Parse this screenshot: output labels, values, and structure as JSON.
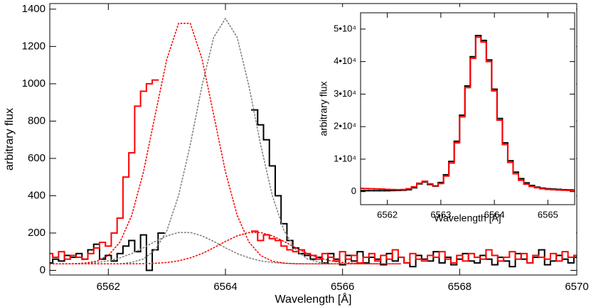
{
  "chart_data": [
    {
      "type": "line",
      "xlabel": "Wavelength [Å]",
      "ylabel": "arbitrary flux",
      "xlim": [
        6561,
        6570
      ],
      "ylim": [
        -25,
        1430
      ],
      "xticks": [
        6562,
        6564,
        6566,
        6568,
        6570
      ],
      "yticks": [
        0,
        200,
        400,
        600,
        800,
        1000,
        1200,
        1400
      ],
      "series": [
        {
          "color": "#000000",
          "drawstyle": "steps",
          "linestyle": "solid",
          "x": [
            6561.0,
            6561.1,
            6561.2,
            6561.3,
            6561.4,
            6561.5,
            6561.6,
            6561.7,
            6561.8,
            6561.9,
            6562.0,
            6562.1,
            6562.2,
            6562.3,
            6562.4,
            6562.5,
            6562.6,
            6562.7,
            6562.8,
            6562.9,
            6563.0,
            6563.1,
            6563.2,
            6563.3,
            6563.4,
            6563.5,
            6563.6,
            6563.7,
            6563.8,
            6563.9,
            6564.0,
            6564.1,
            6564.2,
            6564.3,
            6564.4,
            6564.5,
            6564.6,
            6564.7,
            6564.8,
            6564.9,
            6565.0,
            6565.1,
            6565.2,
            6565.3,
            6565.4,
            6565.5,
            6565.6,
            6565.7,
            6565.8,
            6565.9,
            6566.0,
            6566.1,
            6566.2,
            6566.3,
            6566.4,
            6566.5,
            6566.6,
            6566.7,
            6566.8,
            6566.9,
            6567.0,
            6567.1,
            6567.2,
            6567.3,
            6567.4,
            6567.5,
            6567.6,
            6567.7,
            6567.8,
            6567.9,
            6568.0,
            6568.1,
            6568.2,
            6568.3,
            6568.4,
            6568.5,
            6568.6,
            6568.7,
            6568.8,
            6568.9,
            6569.0,
            6569.1,
            6569.2,
            6569.3,
            6569.4,
            6569.5,
            6569.6,
            6569.7,
            6569.8,
            6569.9,
            6570.0
          ],
          "values": [
            40,
            60,
            50,
            80,
            70,
            90,
            60,
            110,
            140,
            60,
            80,
            50,
            90,
            130,
            160,
            100,
            190,
            0,
            110,
            200,
            null,
            null,
            null,
            null,
            null,
            null,
            null,
            null,
            null,
            null,
            null,
            null,
            null,
            null,
            null,
            860,
            780,
            700,
            560,
            400,
            250,
            160,
            120,
            90,
            80,
            60,
            70,
            40,
            90,
            60,
            30,
            80,
            50,
            100,
            40,
            70,
            60,
            30,
            90,
            50,
            70,
            40,
            20,
            80,
            60,
            50,
            100,
            40,
            70,
            30,
            60,
            90,
            50,
            40,
            80,
            60,
            30,
            70,
            50,
            20,
            90,
            60,
            40,
            70,
            110,
            30,
            50,
            80,
            60,
            40,
            70
          ]
        },
        {
          "color": "#ff0000",
          "drawstyle": "steps",
          "linestyle": "solid",
          "x": [
            6561.0,
            6561.1,
            6561.2,
            6561.3,
            6561.4,
            6561.5,
            6561.6,
            6561.7,
            6561.8,
            6561.9,
            6562.0,
            6562.1,
            6562.2,
            6562.3,
            6562.4,
            6562.5,
            6562.6,
            6562.7,
            6562.8,
            6562.9,
            6563.0,
            6563.1,
            6563.2,
            6563.3,
            6563.4,
            6563.5,
            6563.6,
            6563.7,
            6563.8,
            6563.9,
            6564.0,
            6564.1,
            6564.2,
            6564.3,
            6564.4,
            6564.5,
            6564.6,
            6564.7,
            6564.8,
            6564.9,
            6565.0,
            6565.1,
            6565.2,
            6565.3,
            6565.4,
            6565.5,
            6565.6,
            6565.7,
            6565.8,
            6565.9,
            6566.0,
            6566.1,
            6566.2,
            6566.3,
            6566.4,
            6566.5,
            6566.6,
            6566.7,
            6566.8,
            6566.9,
            6567.0,
            6567.1,
            6567.2,
            6567.3,
            6567.4,
            6567.5,
            6567.6,
            6567.7,
            6567.8,
            6567.9,
            6568.0,
            6568.1,
            6568.2,
            6568.3,
            6568.4,
            6568.5,
            6568.6,
            6568.7,
            6568.8,
            6568.9,
            6569.0,
            6569.1,
            6569.2,
            6569.3,
            6569.4,
            6569.5,
            6569.6,
            6569.7,
            6569.8,
            6569.9,
            6570.0
          ],
          "values": [
            90,
            70,
            100,
            60,
            80,
            70,
            60,
            90,
            120,
            150,
            130,
            200,
            280,
            500,
            630,
            880,
            960,
            1000,
            1020,
            null,
            null,
            null,
            null,
            null,
            null,
            null,
            null,
            null,
            null,
            null,
            null,
            null,
            null,
            null,
            null,
            210,
            160,
            190,
            170,
            160,
            130,
            110,
            100,
            110,
            90,
            80,
            60,
            90,
            70,
            50,
            100,
            60,
            80,
            40,
            70,
            90,
            50,
            80,
            60,
            110,
            70,
            40,
            90,
            60,
            50,
            80,
            70,
            100,
            60,
            40,
            80,
            50,
            90,
            70,
            60,
            110,
            80,
            50,
            70,
            100,
            60,
            90,
            40,
            80,
            70,
            60,
            90,
            50,
            100,
            70,
            80
          ]
        },
        {
          "color": "#808080",
          "drawstyle": "default",
          "linestyle": "dotted",
          "x": [
            6561.0,
            6561.2,
            6561.4,
            6561.6,
            6561.8,
            6562.0,
            6562.2,
            6562.4,
            6562.6,
            6562.8,
            6563.0,
            6563.2,
            6563.4,
            6563.6,
            6563.8,
            6564.0,
            6564.2,
            6564.4,
            6564.6,
            6564.8,
            6565.0,
            6565.2,
            6565.4,
            6565.6,
            6565.8,
            6566.0,
            6566.2,
            6566.4,
            6566.6,
            6566.8,
            6567.0
          ],
          "values": [
            35,
            35,
            35,
            35,
            35,
            35,
            35,
            43,
            61,
            109,
            213,
            401,
            675,
            990,
            1249,
            1350,
            1249,
            990,
            675,
            401,
            213,
            109,
            61,
            43,
            35,
            35,
            35,
            35,
            35,
            35,
            35
          ]
        },
        {
          "color": "#808080",
          "drawstyle": "default",
          "linestyle": "dotted",
          "x": [
            6561.0,
            6561.2,
            6561.4,
            6561.6,
            6561.8,
            6562.0,
            6562.2,
            6562.4,
            6562.6,
            6562.8,
            6563.0,
            6563.2,
            6563.4,
            6563.6,
            6563.8,
            6564.0,
            6564.2,
            6564.4,
            6564.6,
            6564.8,
            6565.0,
            6565.2,
            6565.4,
            6565.6,
            6565.8,
            6566.0,
            6566.2,
            6566.4,
            6566.6,
            6566.8,
            6567.0
          ],
          "values": [
            35,
            35,
            36,
            38,
            42,
            51,
            67,
            90,
            121,
            155,
            185,
            203,
            203,
            185,
            155,
            121,
            90,
            67,
            51,
            42,
            38,
            36,
            35,
            35,
            35,
            35,
            35,
            35,
            35,
            35,
            35
          ]
        },
        {
          "color": "#ff0000",
          "drawstyle": "default",
          "linestyle": "dotted",
          "x": [
            6561.0,
            6561.2,
            6561.4,
            6561.6,
            6561.8,
            6562.0,
            6562.2,
            6562.4,
            6562.6,
            6562.8,
            6563.0,
            6563.2,
            6563.4,
            6563.6,
            6563.8,
            6564.0,
            6564.2,
            6564.4,
            6564.6,
            6564.8,
            6565.0,
            6565.2,
            6565.4,
            6565.6,
            6565.8,
            6566.0,
            6566.2,
            6566.4,
            6566.6,
            6566.8,
            6567.0
          ],
          "values": [
            35,
            35,
            35,
            39,
            49,
            80,
            152,
            295,
            528,
            833,
            1133,
            1324,
            1324,
            1133,
            833,
            528,
            295,
            152,
            80,
            49,
            39,
            35,
            35,
            35,
            35,
            35,
            35,
            35,
            35,
            35,
            35
          ]
        },
        {
          "color": "#ff0000",
          "drawstyle": "default",
          "linestyle": "dotted",
          "x": [
            6561.0,
            6561.2,
            6561.4,
            6561.6,
            6561.8,
            6562.0,
            6562.2,
            6562.4,
            6562.6,
            6562.8,
            6563.0,
            6563.2,
            6563.4,
            6563.6,
            6563.8,
            6564.0,
            6564.2,
            6564.4,
            6564.6,
            6564.8,
            6565.0,
            6565.2,
            6565.4,
            6565.6,
            6565.8,
            6566.0,
            6566.2,
            6566.4,
            6566.6,
            6566.8,
            6567.0
          ],
          "values": [
            35,
            35,
            35,
            35,
            35,
            35,
            35,
            35,
            36,
            38,
            42,
            51,
            67,
            90,
            121,
            155,
            185,
            203,
            203,
            185,
            155,
            121,
            90,
            67,
            51,
            42,
            38,
            36,
            35,
            35,
            35
          ]
        }
      ]
    },
    {
      "type": "line",
      "xlabel": "Wavelength [Å]",
      "ylabel": "arbitrary flux",
      "xlim": [
        6561.5,
        6565.5
      ],
      "ylim": [
        -4000,
        55000
      ],
      "xticks": [
        6562,
        6563,
        6564,
        6565
      ],
      "yticks": [
        0,
        {
          "value": 10000,
          "label": "1•10⁴"
        },
        {
          "value": 20000,
          "label": "2•10⁴"
        },
        {
          "value": 30000,
          "label": "3•10⁴"
        },
        {
          "value": 40000,
          "label": "4•10⁴"
        },
        {
          "value": 50000,
          "label": "5•10⁴"
        }
      ],
      "series": [
        {
          "color": "#000000",
          "drawstyle": "steps",
          "linestyle": "solid",
          "x": [
            6561.5,
            6561.6,
            6561.7,
            6561.8,
            6561.9,
            6562.0,
            6562.1,
            6562.2,
            6562.3,
            6562.4,
            6562.5,
            6562.6,
            6562.7,
            6562.8,
            6562.9,
            6563.0,
            6563.1,
            6563.2,
            6563.3,
            6563.4,
            6563.5,
            6563.6,
            6563.7,
            6563.8,
            6563.9,
            6564.0,
            6564.1,
            6564.2,
            6564.3,
            6564.4,
            6564.5,
            6564.6,
            6564.7,
            6564.8,
            6564.9,
            6565.0,
            6565.1,
            6565.2,
            6565.3,
            6565.4,
            6565.5
          ],
          "values": [
            300,
            300,
            300,
            300,
            300,
            300,
            350,
            400,
            450,
            600,
            1200,
            2400,
            3000,
            2200,
            1700,
            2800,
            5200,
            9300,
            15500,
            23500,
            32500,
            41500,
            48000,
            46500,
            40500,
            31500,
            22500,
            15000,
            9500,
            6000,
            4000,
            2700,
            1900,
            1400,
            1100,
            900,
            800,
            700,
            600,
            550,
            500
          ]
        },
        {
          "color": "#ff0000",
          "drawstyle": "steps",
          "linestyle": "solid",
          "x": [
            6561.5,
            6561.6,
            6561.7,
            6561.8,
            6561.9,
            6562.0,
            6562.1,
            6562.2,
            6562.3,
            6562.4,
            6562.5,
            6562.6,
            6562.7,
            6562.8,
            6562.9,
            6563.0,
            6563.1,
            6563.2,
            6563.3,
            6563.4,
            6563.5,
            6563.6,
            6563.7,
            6563.8,
            6563.9,
            6564.0,
            6564.1,
            6564.2,
            6564.3,
            6564.4,
            6564.5,
            6564.6,
            6564.7,
            6564.8,
            6564.9,
            6565.0,
            6565.1,
            6565.2,
            6565.3,
            6565.4,
            6565.5
          ],
          "values": [
            1000,
            950,
            900,
            850,
            800,
            700,
            650,
            600,
            650,
            900,
            1500,
            2600,
            3200,
            2400,
            1800,
            2500,
            4800,
            8800,
            15000,
            23000,
            32000,
            41000,
            47500,
            46000,
            40000,
            31000,
            22000,
            14500,
            9000,
            5500,
            3500,
            2300,
            1600,
            1200,
            900,
            700,
            600,
            500,
            450,
            400,
            400
          ]
        }
      ]
    }
  ]
}
